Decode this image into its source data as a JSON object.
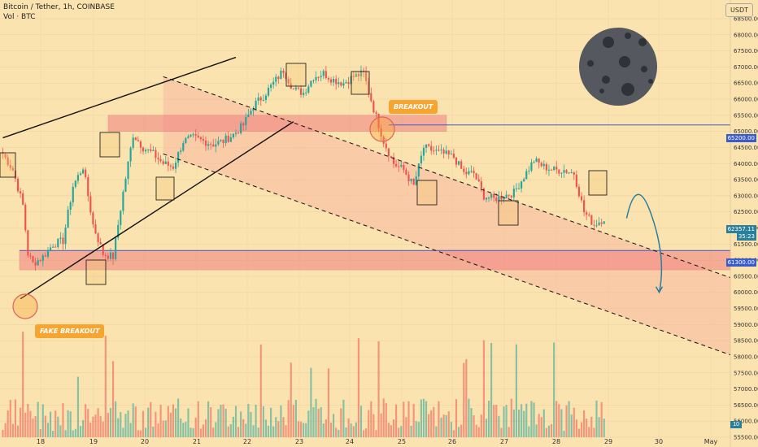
{
  "header": {
    "symbol_line": "Bitcoin / Tether, 1h, COINBASE",
    "volume_line": "Vol · BTC"
  },
  "currency_button": "USDT",
  "annotations": {
    "breakout": "BREAKOUT",
    "fake_breakout": "FAKE BREAKOUT"
  },
  "price_labels": {
    "upper_level": "65200.00",
    "lower_level": "61300.00",
    "current_price": "62357.11",
    "current_sub": "35:23",
    "volume_value": "10"
  },
  "colors": {
    "background": "#fbe3b0",
    "up": "#26a69a",
    "down": "#ef5350",
    "zone": "#f08080",
    "channel": "#f9b8a0",
    "level_line": "#3a5bcc",
    "badge": "#f7a531",
    "moon": "#55585e"
  },
  "chart_data": {
    "type": "candlestick",
    "x_ticks": [
      "18",
      "19",
      "20",
      "21",
      "22",
      "23",
      "24",
      "25",
      "26",
      "27",
      "28",
      "29",
      "30",
      "May"
    ],
    "y_ticks": [
      68500,
      68000,
      67500,
      67000,
      66500,
      66000,
      65500,
      65000,
      64500,
      64000,
      63500,
      63000,
      62500,
      62000,
      61500,
      61000,
      60500,
      60000,
      59500,
      59000,
      58500,
      58000,
      57500,
      57000,
      56500,
      56000,
      55500
    ],
    "y_tick_labels": [
      "68500.00",
      "68000.00",
      "67500.00",
      "67000.00",
      "66500.00",
      "66000.00",
      "65500.00",
      "65000.00",
      "64500.00",
      "64000.00",
      "63500.00",
      "63000.00",
      "62500.00",
      "62000.00",
      "61500.00",
      "61000.00",
      "60500.00",
      "60000.00",
      "59500.00",
      "59000.00",
      "58500.00",
      "58000.00",
      "57500.00",
      "57000.00",
      "56500.00",
      "56000.00",
      "55500.00"
    ],
    "ylim": [
      55400,
      68900
    ],
    "price_path_anchors": [
      [
        0,
        64300
      ],
      [
        4,
        63800
      ],
      [
        8,
        62700
      ],
      [
        10,
        61200
      ],
      [
        12,
        60900
      ],
      [
        16,
        61100
      ],
      [
        20,
        61500
      ],
      [
        24,
        61600
      ],
      [
        28,
        63300
      ],
      [
        32,
        63900
      ],
      [
        36,
        62100
      ],
      [
        40,
        61200
      ],
      [
        44,
        61100
      ],
      [
        48,
        63100
      ],
      [
        52,
        64900
      ],
      [
        56,
        64500
      ],
      [
        60,
        64300
      ],
      [
        64,
        64000
      ],
      [
        68,
        63900
      ],
      [
        72,
        64700
      ],
      [
        76,
        64800
      ],
      [
        80,
        64700
      ],
      [
        84,
        64600
      ],
      [
        88,
        64700
      ],
      [
        92,
        64900
      ],
      [
        96,
        65200
      ],
      [
        100,
        65800
      ],
      [
        104,
        66100
      ],
      [
        108,
        66500
      ],
      [
        112,
        66900
      ],
      [
        116,
        66300
      ],
      [
        120,
        66200
      ],
      [
        124,
        66700
      ],
      [
        128,
        66800
      ],
      [
        132,
        66600
      ],
      [
        136,
        66500
      ],
      [
        140,
        66700
      ],
      [
        144,
        66800
      ],
      [
        148,
        65700
      ],
      [
        152,
        64700
      ],
      [
        156,
        64000
      ],
      [
        160,
        63800
      ],
      [
        164,
        63300
      ],
      [
        168,
        64500
      ],
      [
        172,
        64400
      ],
      [
        176,
        64300
      ],
      [
        180,
        64200
      ],
      [
        184,
        63700
      ],
      [
        188,
        63700
      ],
      [
        192,
        63000
      ],
      [
        196,
        62900
      ],
      [
        200,
        63000
      ],
      [
        204,
        63100
      ],
      [
        208,
        63600
      ],
      [
        212,
        64100
      ],
      [
        216,
        63900
      ],
      [
        220,
        63800
      ],
      [
        224,
        63800
      ],
      [
        228,
        63700
      ],
      [
        232,
        62500
      ],
      [
        236,
        62100
      ],
      [
        240,
        62300
      ]
    ],
    "resistance_zone": [
      65000,
      65500
    ],
    "support_zone": [
      60700,
      61300
    ],
    "horizontal_levels": [
      65200,
      61300
    ],
    "channel": {
      "upper": [
        [
          64,
          66700
        ],
        [
          249,
          61600
        ]
      ],
      "lower": [
        [
          64,
          64300
        ],
        [
          249,
          59200
        ]
      ]
    },
    "wedge_lines": {
      "upper": [
        [
          0,
          64800
        ],
        [
          93,
          67300
        ]
      ],
      "lower": [
        [
          7,
          59800
        ],
        [
          116,
          65300
        ]
      ]
    },
    "projection": [
      [
        249,
        62300
      ],
      [
        253,
        63100
      ],
      [
        257,
        62900
      ],
      [
        262,
        60000
      ]
    ]
  }
}
